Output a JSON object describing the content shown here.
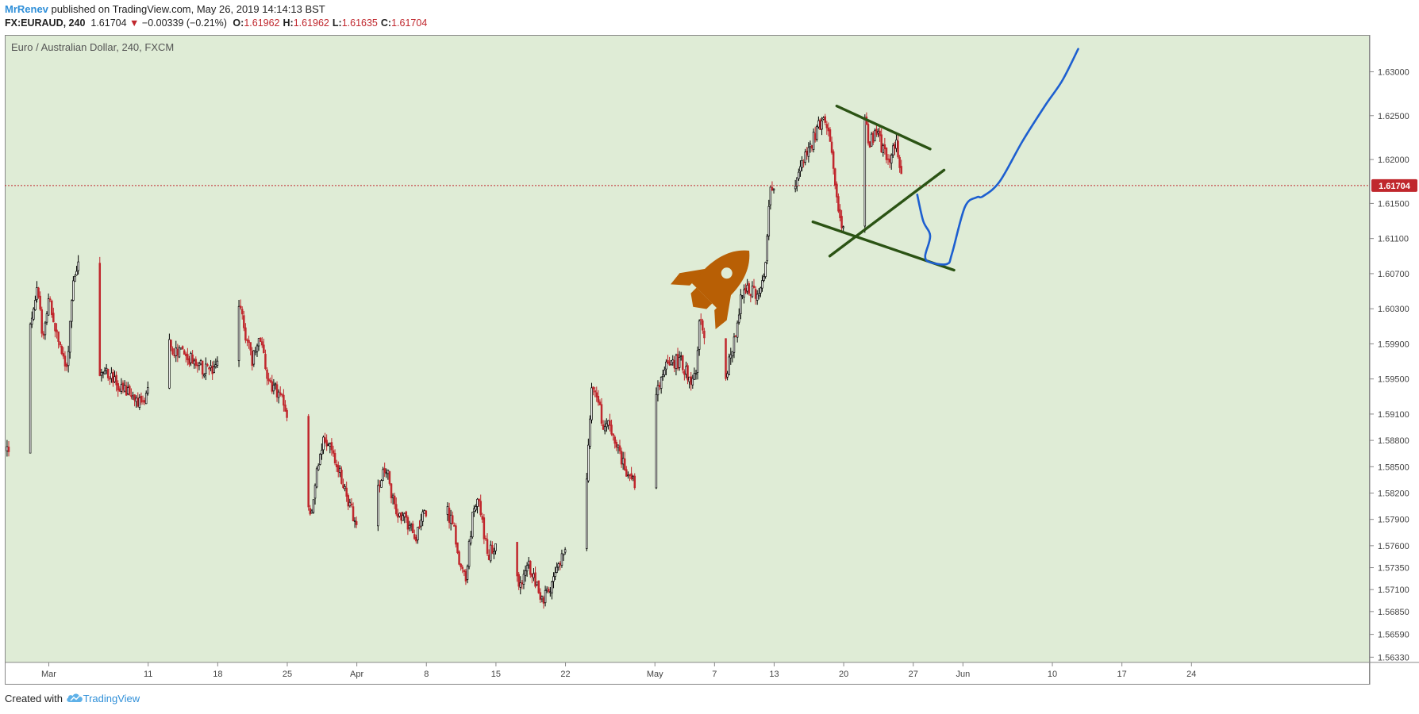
{
  "header": {
    "user": "MrRenev",
    "text": " published on TradingView.com, May 26, 2019 14:14:13 BST"
  },
  "symbol_line": {
    "symbol": "FX:EURAUD, 240",
    "last": "1.61704",
    "arrow": "▼",
    "change": "−0.00339 (−0.21%)",
    "o_label": "O:",
    "o": "1.61962",
    "h_label": "H:",
    "h": "1.61962",
    "l_label": "L:",
    "l": "1.61635",
    "c_label": "C:",
    "c": "1.61704"
  },
  "footer": {
    "prefix": "Created with",
    "brand": "TradingView",
    "logo_icon": "tradingview-cloud-icon"
  },
  "colors": {
    "background": "#dfecd6",
    "up": "#000000",
    "down": "#c0272d",
    "price_line": "#c0272d",
    "pattern_lines": "#2b5314",
    "projection": "#1d5fd0",
    "rocket": "#b85f05"
  },
  "chart_data": {
    "type": "candlestick",
    "title": "Euro / Australian Dollar, 240, FXCM",
    "last_price_label": "1.61704",
    "last_price": 1.61704,
    "ylim": [
      1.5627,
      1.6342
    ],
    "y_ticks": [
      "1.63000",
      "1.62500",
      "1.62000",
      "1.61500",
      "1.61100",
      "1.60700",
      "1.60300",
      "1.59900",
      "1.59500",
      "1.59100",
      "1.58800",
      "1.58500",
      "1.58200",
      "1.57900",
      "1.57600",
      "1.57350",
      "1.57100",
      "1.56850",
      "1.56590",
      "1.56330"
    ],
    "x_ticks": [
      {
        "label": "Mar",
        "day": 0
      },
      {
        "label": "11",
        "day": 10
      },
      {
        "label": "18",
        "day": 17
      },
      {
        "label": "25",
        "day": 24
      },
      {
        "label": "Apr",
        "day": 31
      },
      {
        "label": "8",
        "day": 38
      },
      {
        "label": "15",
        "day": 45
      },
      {
        "label": "22",
        "day": 52
      },
      {
        "label": "May",
        "day": 61
      },
      {
        "label": "7",
        "day": 67
      },
      {
        "label": "13",
        "day": 73
      },
      {
        "label": "20",
        "day": 80
      },
      {
        "label": "27",
        "day": 87
      },
      {
        "label": "Jun",
        "day": 92
      },
      {
        "label": "10",
        "day": 101
      },
      {
        "label": "17",
        "day": 108
      },
      {
        "label": "24",
        "day": 115
      }
    ],
    "candles_per_day": 6,
    "start_day": -4.2,
    "path_anchors": [
      [
        -4.2,
        1.587
      ],
      [
        -3.3,
        1.583
      ],
      [
        -2.6,
        1.593
      ],
      [
        -1.8,
        1.602
      ],
      [
        -1.2,
        1.605
      ],
      [
        -0.6,
        1.6
      ],
      [
        0,
        1.604
      ],
      [
        1,
        1.599
      ],
      [
        1.8,
        1.596
      ],
      [
        2.4,
        1.606
      ],
      [
        3.1,
        1.609
      ],
      [
        3.8,
        1.602
      ],
      [
        4.9,
        1.595
      ],
      [
        5.8,
        1.596
      ],
      [
        7,
        1.594
      ],
      [
        8.4,
        1.593
      ],
      [
        9.4,
        1.592
      ],
      [
        10.6,
        1.595
      ],
      [
        11.5,
        1.603
      ],
      [
        12.5,
        1.598
      ],
      [
        13.5,
        1.598
      ],
      [
        14.4,
        1.597
      ],
      [
        15.8,
        1.596
      ],
      [
        16.8,
        1.596
      ],
      [
        17.9,
        1.599
      ],
      [
        18.7,
        1.606
      ],
      [
        19.6,
        1.601
      ],
      [
        20.5,
        1.597
      ],
      [
        21.4,
        1.6
      ],
      [
        21.8,
        1.596
      ],
      [
        22.6,
        1.594
      ],
      [
        23.3,
        1.593
      ],
      [
        24.2,
        1.59
      ],
      [
        25.2,
        1.586
      ],
      [
        25.9,
        1.582
      ],
      [
        26.4,
        1.579
      ],
      [
        27,
        1.585
      ],
      [
        27.6,
        1.588
      ],
      [
        28.4,
        1.587
      ],
      [
        29.4,
        1.584
      ],
      [
        30.2,
        1.581
      ],
      [
        31.2,
        1.577
      ],
      [
        31.8,
        1.576
      ],
      [
        32.4,
        1.578
      ],
      [
        33.4,
        1.584
      ],
      [
        34,
        1.585
      ],
      [
        34.8,
        1.58
      ],
      [
        35.8,
        1.579
      ],
      [
        36.9,
        1.577
      ],
      [
        37.6,
        1.58
      ],
      [
        38.2,
        1.58
      ],
      [
        39,
        1.582
      ],
      [
        40,
        1.58
      ],
      [
        40.8,
        1.578
      ],
      [
        41.3,
        1.574
      ],
      [
        41.9,
        1.572
      ],
      [
        42.6,
        1.579
      ],
      [
        43.2,
        1.582
      ],
      [
        43.7,
        1.578
      ],
      [
        44.3,
        1.575
      ],
      [
        44.9,
        1.576
      ],
      [
        45.4,
        1.579
      ],
      [
        46,
        1.578
      ],
      [
        46.8,
        1.573
      ],
      [
        47.5,
        1.571
      ],
      [
        48.2,
        1.574
      ],
      [
        49,
        1.572
      ],
      [
        49.7,
        1.57
      ],
      [
        50.6,
        1.571
      ],
      [
        51.1,
        1.573
      ],
      [
        51.7,
        1.575
      ],
      [
        52.4,
        1.578
      ],
      [
        53.2,
        1.58
      ],
      [
        54,
        1.582
      ],
      [
        54.4,
        1.589
      ],
      [
        54.6,
        1.594
      ],
      [
        55.1,
        1.593
      ],
      [
        55.8,
        1.59
      ],
      [
        56.8,
        1.589
      ],
      [
        57.6,
        1.586
      ],
      [
        58.3,
        1.584
      ],
      [
        59.1,
        1.583
      ],
      [
        59.8,
        1.584
      ],
      [
        60.4,
        1.588
      ],
      [
        61,
        1.592
      ],
      [
        61.8,
        1.596
      ],
      [
        62.8,
        1.597
      ],
      [
        63.6,
        1.597
      ],
      [
        64.5,
        1.595
      ],
      [
        65.2,
        1.595
      ],
      [
        65.5,
        1.603
      ],
      [
        65.8,
        1.6
      ],
      [
        66.6,
        1.601
      ],
      [
        67.1,
        1.595
      ],
      [
        67.6,
        1.595
      ],
      [
        68.3,
        1.596
      ],
      [
        69.1,
        1.6
      ],
      [
        69.8,
        1.605
      ],
      [
        70.8,
        1.605
      ],
      [
        71.5,
        1.604
      ],
      [
        72.1,
        1.608
      ],
      [
        72.6,
        1.616
      ],
      [
        73.2,
        1.618
      ],
      [
        73.7,
        1.617
      ],
      [
        74.4,
        1.614
      ],
      [
        75.2,
        1.618
      ],
      [
        76,
        1.62
      ],
      [
        76.8,
        1.622
      ],
      [
        77.6,
        1.624
      ],
      [
        78.1,
        1.625
      ],
      [
        78.6,
        1.622
      ],
      [
        78.9,
        1.619
      ],
      [
        79.4,
        1.614
      ],
      [
        79.9,
        1.612
      ],
      [
        80.6,
        1.614
      ],
      [
        81.2,
        1.623
      ],
      [
        81.9,
        1.625
      ],
      [
        82.6,
        1.622
      ],
      [
        83.3,
        1.623
      ],
      [
        84,
        1.621
      ],
      [
        84.7,
        1.62
      ],
      [
        85.2,
        1.622
      ],
      [
        85.6,
        1.62
      ],
      [
        85.9,
        1.617
      ]
    ],
    "annotations": {
      "resistance_line": [
        [
          79.3,
          1.6261
        ],
        [
          88.7,
          1.6212
        ]
      ],
      "support_line_lower": [
        [
          76.9,
          1.6129
        ],
        [
          91.1,
          1.6074
        ]
      ],
      "support_line_rising": [
        [
          78.6,
          1.609
        ],
        [
          90.1,
          1.6188
        ]
      ],
      "projection_path": [
        [
          87.4,
          1.616
        ],
        [
          88,
          1.613
        ],
        [
          88.7,
          1.6113
        ],
        [
          88.2,
          1.609
        ],
        [
          88.7,
          1.6083
        ],
        [
          90.4,
          1.6081
        ],
        [
          90.9,
          1.6093
        ],
        [
          92.2,
          1.6146
        ],
        [
          93.4,
          1.6157
        ],
        [
          94,
          1.6158
        ],
        [
          95.7,
          1.6175
        ],
        [
          98,
          1.6221
        ],
        [
          100.3,
          1.6262
        ],
        [
          102,
          1.629
        ],
        [
          103.6,
          1.6326
        ]
      ],
      "rocket_icon": "rocket-icon"
    }
  }
}
